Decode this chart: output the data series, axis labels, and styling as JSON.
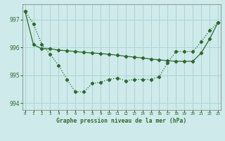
{
  "title": "Graphe pression niveau de la mer (hPa)",
  "bg_color": "#ceeaea",
  "grid_color": "#add4d4",
  "line_color": "#2d6a2d",
  "x_labels": [
    "0",
    "1",
    "2",
    "3",
    "4",
    "5",
    "6",
    "7",
    "8",
    "9",
    "10",
    "11",
    "12",
    "13",
    "14",
    "15",
    "16",
    "17",
    "18",
    "19",
    "20",
    "21",
    "22",
    "23"
  ],
  "ylim": [
    993.75,
    997.55
  ],
  "yticks": [
    994,
    995,
    996,
    997
  ],
  "xlim": [
    -0.3,
    23.3
  ],
  "s1": [
    997.3,
    996.85,
    996.1,
    995.75,
    995.35,
    994.85,
    994.4,
    994.4,
    994.7,
    994.75,
    994.85,
    994.9,
    994.8,
    994.85,
    994.85,
    994.85,
    994.95,
    995.45,
    995.85,
    995.85,
    995.85,
    996.2,
    996.6,
    996.9
  ],
  "s2": [
    997.3,
    996.1,
    995.95,
    995.95,
    995.9,
    995.88,
    995.85,
    995.82,
    995.8,
    995.78,
    995.75,
    995.72,
    995.68,
    995.65,
    995.62,
    995.58,
    995.55,
    995.52,
    995.5,
    995.5,
    995.5,
    995.8,
    996.3,
    996.9
  ]
}
